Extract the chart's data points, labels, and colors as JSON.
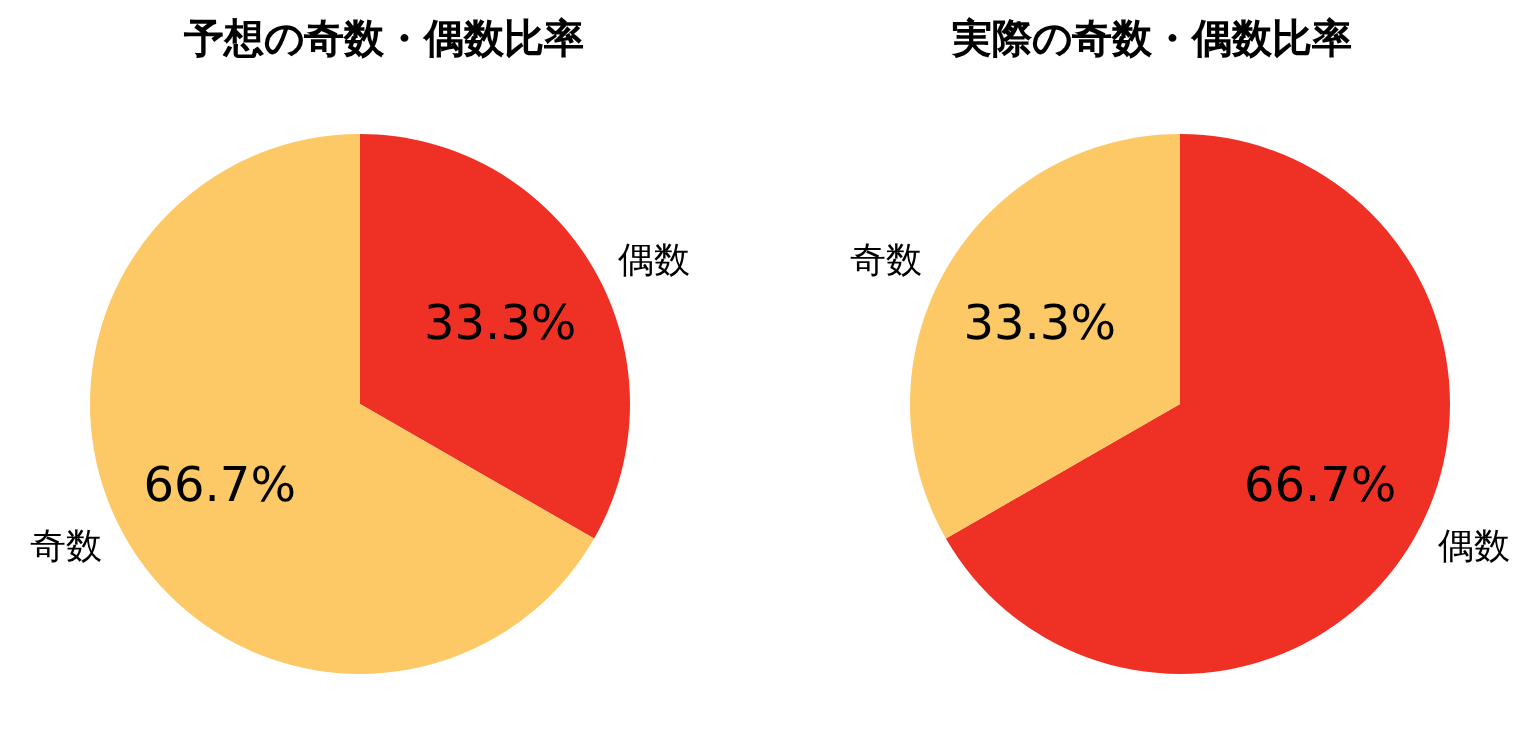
{
  "chart_data": [
    {
      "type": "pie",
      "title": "予想の奇数・偶数比率",
      "categories": [
        "偶数",
        "奇数"
      ],
      "values": [
        33.3,
        66.7
      ],
      "colors": [
        "#ee3124",
        "#fdc966"
      ],
      "value_labels": [
        "33.3%",
        "66.7%"
      ]
    },
    {
      "type": "pie",
      "title": "実際の奇数・偶数比率",
      "categories": [
        "偶数",
        "奇数"
      ],
      "values": [
        66.7,
        33.3
      ],
      "colors": [
        "#ee3124",
        "#fdc966"
      ],
      "value_labels": [
        "66.7%",
        "33.3%"
      ]
    }
  ]
}
